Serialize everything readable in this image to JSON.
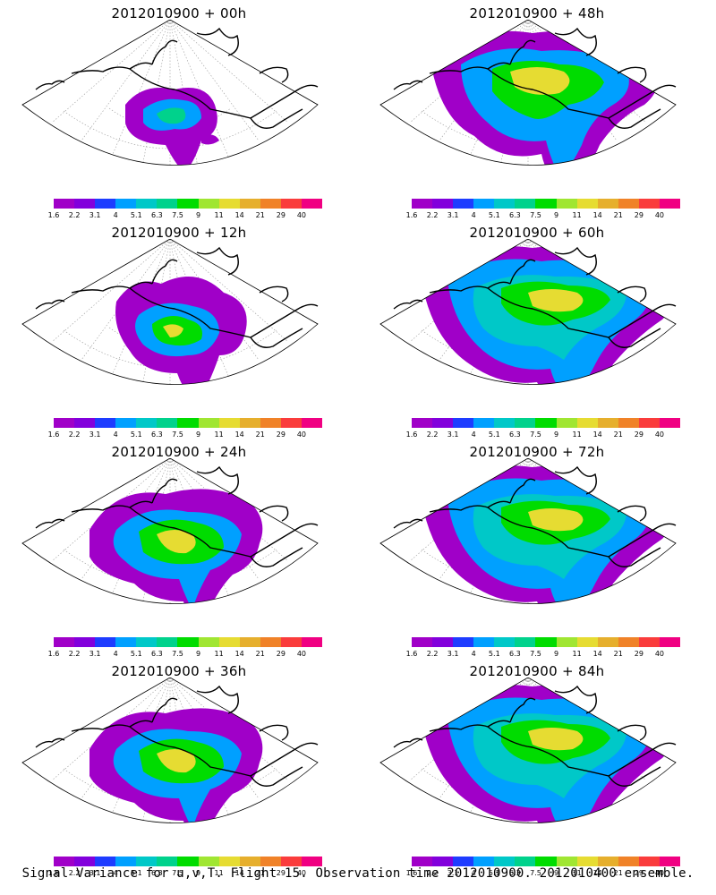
{
  "panels": [
    {
      "title": "2012010900 + 00h",
      "level": 0
    },
    {
      "title": "2012010900 + 48h",
      "level": 3
    },
    {
      "title": "2012010900 + 12h",
      "level": 1
    },
    {
      "title": "2012010900 + 60h",
      "level": 4
    },
    {
      "title": "2012010900 + 24h",
      "level": 2
    },
    {
      "title": "2012010900 + 72h",
      "level": 4
    },
    {
      "title": "2012010900 + 36h",
      "level": 2
    },
    {
      "title": "2012010900 + 84h",
      "level": 4
    }
  ],
  "colorbar": {
    "colors": [
      "#a000c8",
      "#8200dc",
      "#1e3cff",
      "#00a0ff",
      "#00c8c8",
      "#00d28c",
      "#00dc00",
      "#a0e632",
      "#e6dc32",
      "#e6af2d",
      "#f08228",
      "#fa3c3c",
      "#f00082"
    ],
    "ticks": [
      "1.6",
      "2.2",
      "3.1",
      "4",
      "5.1",
      "6.3",
      "7.5",
      "9",
      "11",
      "14",
      "21",
      "29",
      "40"
    ]
  },
  "footer": "Signal Variance for u,v,T. Flight 15. Observation time 2012010900. 2012010400 ensemble."
}
